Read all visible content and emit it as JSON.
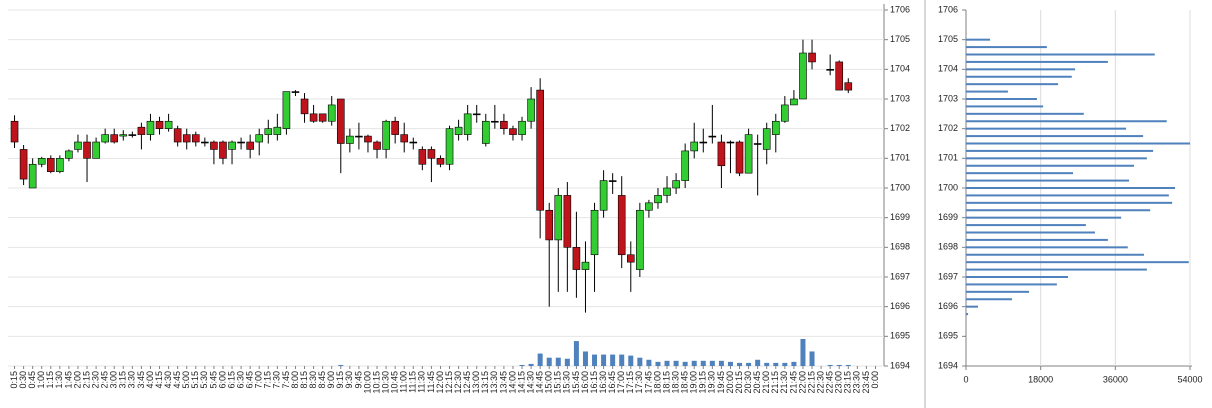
{
  "chart_data": [
    {
      "type": "candlestick",
      "categories": [
        "0:15",
        "0:30",
        "0:45",
        "1:00",
        "1:15",
        "1:30",
        "1:45",
        "2:00",
        "2:15",
        "2:30",
        "2:45",
        "3:00",
        "3:15",
        "3:30",
        "3:45",
        "4:00",
        "4:15",
        "4:30",
        "4:45",
        "5:00",
        "5:15",
        "5:30",
        "5:45",
        "6:00",
        "6:15",
        "6:30",
        "6:45",
        "7:00",
        "7:15",
        "7:30",
        "7:45",
        "8:00",
        "8:15",
        "8:30",
        "8:45",
        "9:00",
        "9:15",
        "9:30",
        "9:45",
        "10:00",
        "10:15",
        "10:30",
        "10:45",
        "11:00",
        "11:15",
        "11:30",
        "11:45",
        "12:00",
        "12:15",
        "12:30",
        "12:45",
        "13:00",
        "13:15",
        "13:30",
        "13:45",
        "14:00",
        "14:15",
        "14:30",
        "14:45",
        "15:00",
        "15:15",
        "15:30",
        "15:45",
        "16:00",
        "16:15",
        "16:30",
        "16:45",
        "17:00",
        "17:15",
        "17:30",
        "17:45",
        "18:00",
        "18:15",
        "18:30",
        "18:45",
        "19:00",
        "19:15",
        "19:30",
        "19:45",
        "20:00",
        "20:15",
        "20:30",
        "20:45",
        "21:00",
        "21:15",
        "21:30",
        "21:45",
        "22:00",
        "22:15",
        "22:30",
        "22:45",
        "23:00",
        "23:15",
        "23:30",
        "23:45",
        "0:00"
      ],
      "open": [
        1702.25,
        1701.3,
        1700.0,
        1700.8,
        1701.0,
        1700.55,
        1701.0,
        1701.3,
        1701.55,
        1701.0,
        1701.55,
        1701.8,
        1701.75,
        1701.8,
        1702.05,
        1701.8,
        1702.25,
        1702.0,
        1702.0,
        1701.8,
        1701.8,
        1701.55,
        1701.55,
        1701.55,
        1701.3,
        1701.55,
        1701.55,
        1701.55,
        1701.8,
        1701.8,
        1702.0,
        1703.25,
        1703.0,
        1702.5,
        1702.5,
        1702.25,
        1703.0,
        1701.5,
        1701.75,
        1701.75,
        1701.55,
        1701.3,
        1702.25,
        1701.8,
        1701.55,
        1701.3,
        1701.3,
        1701.0,
        1700.8,
        1701.8,
        1701.8,
        1702.5,
        1701.5,
        1702.25,
        1702.25,
        1702.0,
        1701.8,
        1702.25,
        1703.3,
        1699.25,
        1698.25,
        1699.75,
        1698.0,
        1697.25,
        1697.75,
        1699.25,
        1700.25,
        1699.75,
        1697.75,
        1697.25,
        1699.25,
        1699.5,
        1699.75,
        1700.0,
        1700.25,
        1701.25,
        1701.55,
        1701.75,
        1701.55,
        1701.55,
        1701.55,
        1700.5,
        1701.5,
        1701.3,
        1701.8,
        1702.25,
        1702.8,
        1703.0,
        1704.55,
        null,
        1704.0,
        1704.25,
        1703.55,
        null,
        null,
        null
      ],
      "high": [
        1702.45,
        1701.45,
        1701.0,
        1701.05,
        1701.1,
        1701.1,
        1701.3,
        1701.8,
        1701.8,
        1701.7,
        1702.0,
        1702.0,
        1701.95,
        1701.9,
        1702.2,
        1702.5,
        1702.4,
        1702.5,
        1702.1,
        1702.0,
        1701.9,
        1701.7,
        1701.6,
        1701.6,
        1701.6,
        1701.7,
        1701.8,
        1702.0,
        1702.3,
        1702.5,
        1703.25,
        1703.3,
        1703.2,
        1702.8,
        1702.5,
        1703.1,
        1703.0,
        1702.0,
        1702.2,
        1701.8,
        1701.6,
        1702.3,
        1702.4,
        1702.2,
        1701.7,
        1701.4,
        1701.4,
        1701.1,
        1702.1,
        1702.3,
        1702.8,
        1702.8,
        1702.5,
        1702.8,
        1702.5,
        1702.1,
        1702.4,
        1703.4,
        1703.7,
        1699.5,
        1700.0,
        1700.2,
        1699.2,
        1698.2,
        1699.5,
        1700.6,
        1700.5,
        1700.4,
        1698.2,
        1699.5,
        1699.6,
        1700.0,
        1700.4,
        1700.5,
        1701.5,
        1702.2,
        1702.0,
        1702.8,
        1701.8,
        1701.6,
        1701.6,
        1702.0,
        1701.8,
        1702.2,
        1702.5,
        1703.1,
        1703.3,
        1705.0,
        1705.0,
        null,
        1704.5,
        1704.3,
        1703.7,
        null,
        null,
        null
      ],
      "low": [
        1701.35,
        1700.1,
        1700.0,
        1700.7,
        1700.5,
        1700.5,
        1700.9,
        1701.2,
        1700.2,
        1701.0,
        1701.5,
        1701.5,
        1701.6,
        1701.7,
        1701.3,
        1701.6,
        1701.8,
        1701.9,
        1701.4,
        1701.3,
        1701.4,
        1701.4,
        1700.8,
        1700.8,
        1700.8,
        1701.3,
        1701.0,
        1701.1,
        1701.5,
        1701.6,
        1701.8,
        1703.1,
        1702.2,
        1702.2,
        1702.2,
        1702.1,
        1700.5,
        1701.2,
        1701.3,
        1701.2,
        1701.0,
        1701.0,
        1701.5,
        1701.2,
        1701.3,
        1700.6,
        1700.2,
        1700.7,
        1700.6,
        1701.6,
        1701.6,
        1702.2,
        1701.4,
        1702.0,
        1701.8,
        1701.6,
        1701.6,
        1702.0,
        1698.3,
        1696.0,
        1696.5,
        1696.5,
        1696.3,
        1695.8,
        1696.5,
        1699.0,
        1699.8,
        1697.3,
        1696.5,
        1697.0,
        1699.0,
        1699.3,
        1699.5,
        1699.8,
        1700.0,
        1701.0,
        1701.2,
        1701.5,
        1700.0,
        1700.5,
        1700.4,
        1700.5,
        1699.75,
        1700.8,
        1701.2,
        1702.2,
        1702.8,
        1703.0,
        1704.0,
        null,
        1703.8,
        1703.3,
        1703.2,
        null,
        null,
        null
      ],
      "close": [
        1701.55,
        1700.3,
        1700.8,
        1701.0,
        1700.55,
        1701.0,
        1701.25,
        1701.55,
        1701.0,
        1701.55,
        1701.8,
        1701.55,
        1701.8,
        1701.8,
        1701.8,
        1702.25,
        1702.0,
        1702.25,
        1701.55,
        1701.55,
        1701.55,
        1701.55,
        1701.3,
        1701.0,
        1701.55,
        1701.55,
        1701.3,
        1701.8,
        1702.0,
        1702.05,
        1703.25,
        1703.25,
        1702.5,
        1702.25,
        1702.25,
        1702.8,
        1701.5,
        1701.75,
        1701.75,
        1701.55,
        1701.3,
        1702.25,
        1701.8,
        1701.55,
        1701.55,
        1700.8,
        1701.0,
        1700.8,
        1702.0,
        1702.05,
        1702.5,
        1702.5,
        1702.25,
        1702.25,
        1702.0,
        1701.8,
        1702.25,
        1703.0,
        1699.25,
        1698.25,
        1699.75,
        1698.0,
        1697.25,
        1697.5,
        1699.25,
        1700.25,
        1700.25,
        1697.75,
        1697.5,
        1699.25,
        1699.5,
        1699.75,
        1700.0,
        1700.25,
        1701.25,
        1701.55,
        1701.55,
        1701.75,
        1700.75,
        1701.55,
        1700.5,
        1701.8,
        1701.5,
        1702.0,
        1702.25,
        1702.8,
        1703.0,
        1704.55,
        1704.25,
        null,
        1704.0,
        1703.3,
        1703.3,
        null,
        null,
        null
      ],
      "volume": [
        0,
        0,
        0,
        0,
        0,
        0,
        0,
        0,
        0,
        0,
        0,
        0,
        0,
        0,
        0,
        0,
        0,
        0,
        0,
        0,
        0,
        0,
        0,
        0,
        0,
        0,
        0,
        0,
        0,
        0,
        0,
        0,
        0,
        0,
        0,
        0,
        1,
        0,
        0,
        0,
        0,
        0,
        0,
        0,
        0,
        0,
        0,
        0,
        0,
        0,
        0,
        0,
        0,
        0,
        0,
        0,
        1,
        2,
        12,
        8,
        8,
        7,
        24,
        14,
        11,
        11,
        11,
        11,
        10,
        8,
        6,
        4,
        5,
        5,
        4,
        5,
        5,
        5,
        5,
        4,
        3,
        3,
        6,
        3,
        3,
        3,
        4,
        26,
        14,
        null,
        1,
        1,
        1,
        null,
        null,
        null
      ],
      "up_color": "#33cc33",
      "down_color": "#c0141c",
      "volume_color": "#4f81bd",
      "ylim": [
        1694,
        1706
      ],
      "yticks": [
        1694,
        1695,
        1696,
        1697,
        1698,
        1699,
        1700,
        1701,
        1702,
        1703,
        1704,
        1705,
        1706
      ],
      "grid": true
    },
    {
      "type": "barh",
      "y": [
        1705.0,
        1704.75,
        1704.5,
        1704.25,
        1704.0,
        1703.75,
        1703.5,
        1703.25,
        1703.0,
        1702.75,
        1702.5,
        1702.25,
        1702.0,
        1701.75,
        1701.5,
        1701.25,
        1701.0,
        1700.75,
        1700.5,
        1700.25,
        1700.0,
        1699.75,
        1699.5,
        1699.25,
        1699.0,
        1698.75,
        1698.5,
        1698.25,
        1698.0,
        1697.75,
        1697.5,
        1697.25,
        1697.0,
        1696.75,
        1696.5,
        1696.25,
        1696.0,
        1695.75
      ],
      "values": [
        5800,
        19500,
        45500,
        34200,
        26300,
        25500,
        22200,
        10100,
        17100,
        18600,
        28400,
        48400,
        38600,
        42700,
        54000,
        45100,
        43600,
        40500,
        25800,
        39300,
        50400,
        48900,
        49700,
        44400,
        37400,
        28900,
        31100,
        34200,
        39000,
        42900,
        53700,
        43600,
        24600,
        21900,
        15200,
        11100,
        2900,
        500
      ],
      "color": "#4f81bd",
      "xlim": [
        0,
        54000
      ],
      "xticks": [
        0,
        18000,
        36000,
        54000
      ],
      "ylim": [
        1694,
        1706
      ],
      "yticks": [
        1694,
        1695,
        1696,
        1697,
        1698,
        1699,
        1700,
        1701,
        1702,
        1703,
        1704,
        1705,
        1706
      ],
      "grid": true
    }
  ]
}
